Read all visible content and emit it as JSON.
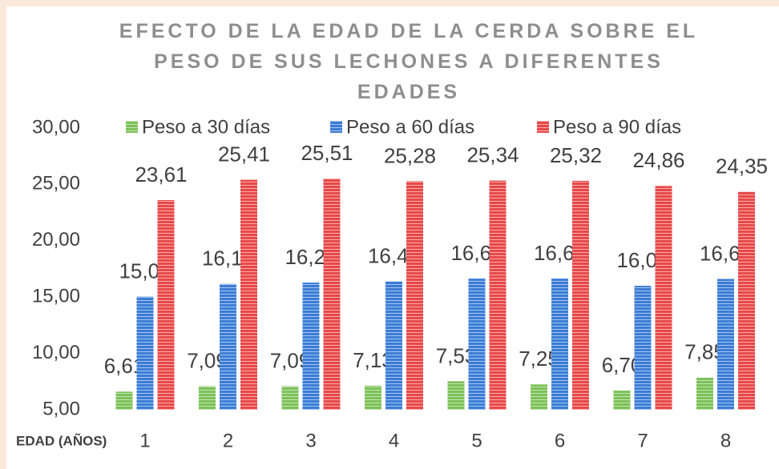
{
  "chart_data": {
    "type": "bar",
    "title": "EFECTO DE LA EDAD DE LA CERDA SOBRE EL PESO DE SUS LECHONES A DIFERENTES EDADES",
    "x_label": "EDAD (AÑOS)",
    "categories": [
      "1",
      "2",
      "3",
      "4",
      "5",
      "6",
      "7",
      "8"
    ],
    "series": [
      {
        "name": "Peso a 30 días",
        "color": "#7cc158",
        "values": [
          6.61,
          7.09,
          7.09,
          7.13,
          7.53,
          7.25,
          6.7,
          7.85
        ],
        "value_labels": [
          "6,61",
          "7,09",
          "7,09",
          "7,13",
          "7,53",
          "7,25",
          "6,70",
          "7,85"
        ]
      },
      {
        "name": "Peso a 60 días",
        "color": "#3b7dd6",
        "values": [
          15.04,
          16.17,
          16.29,
          16.4,
          16.64,
          16.64,
          16.0,
          16.61
        ],
        "value_labels": [
          "15,04",
          "16,17",
          "16,29",
          "16,40",
          "16,64",
          "16,64",
          "16,00",
          "16,61"
        ]
      },
      {
        "name": "Peso a 90 días",
        "color": "#e84848",
        "values": [
          23.61,
          25.41,
          25.51,
          25.28,
          25.34,
          25.32,
          24.86,
          24.35
        ],
        "value_labels": [
          "23,61",
          "25,41",
          "25,51",
          "25,28",
          "25,34",
          "25,32",
          "24,86",
          "24,35"
        ]
      }
    ],
    "ylim": [
      5,
      30
    ],
    "yticks": [
      {
        "value": 5,
        "label": "5,00"
      },
      {
        "value": 10,
        "label": "10,00"
      },
      {
        "value": 15,
        "label": "15,00"
      },
      {
        "value": 20,
        "label": "20,00"
      },
      {
        "value": 25,
        "label": "25,00"
      },
      {
        "value": 30,
        "label": "30,00"
      }
    ],
    "legend": "top"
  }
}
